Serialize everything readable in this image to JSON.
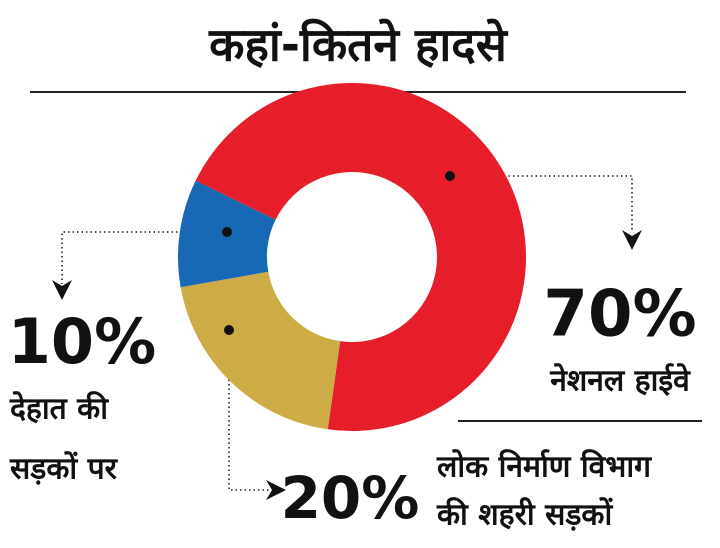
{
  "chart_data": {
    "type": "donut",
    "title": "कहां-कितने हादसे",
    "categories": [
      [
        "नेशनल हाईवे"
      ],
      [
        "लोक निर्माण विभाग",
        "की शहरी सड़कों"
      ],
      [
        "देहात की",
        "सड़कों पर"
      ]
    ],
    "values": [
      70,
      20,
      10
    ],
    "value_labels": [
      "70%",
      "20%",
      "10%"
    ],
    "colors": [
      "#e61e2a",
      "#cdac46",
      "#1769b6"
    ]
  }
}
